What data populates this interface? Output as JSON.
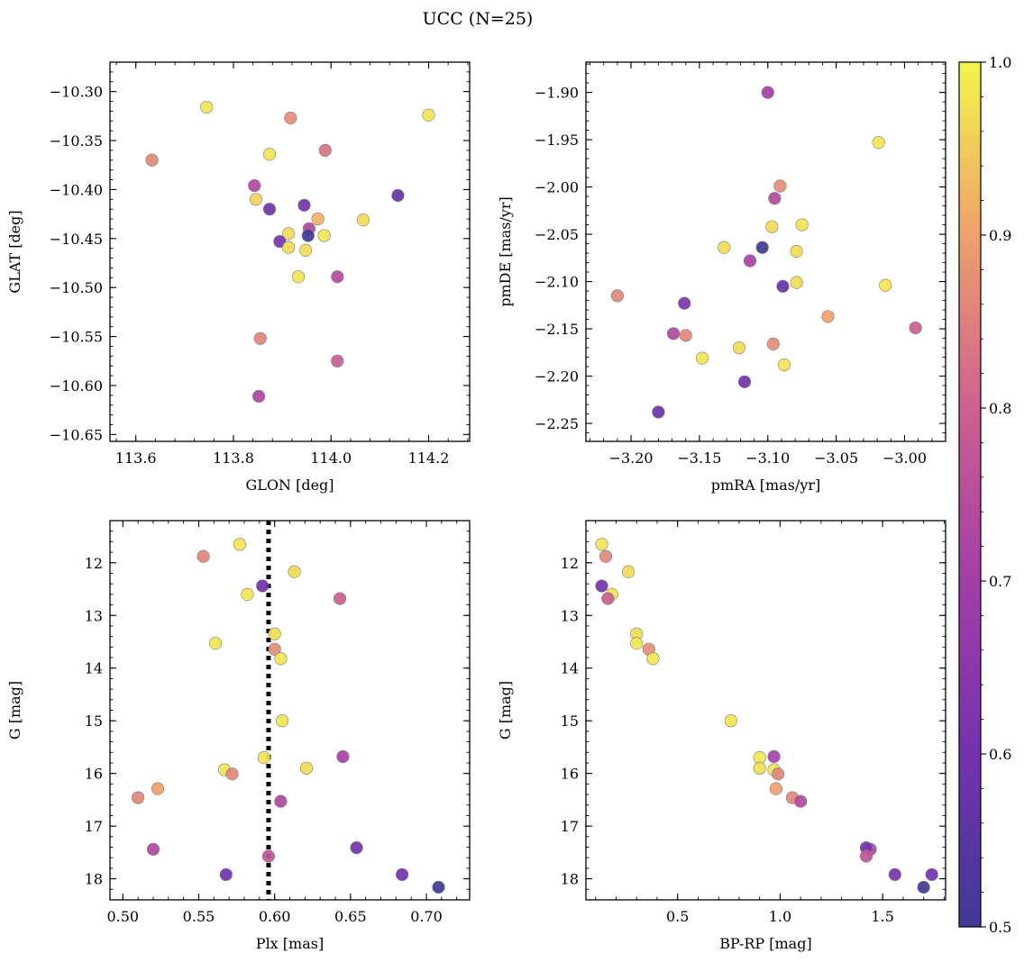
{
  "chart_data": {
    "type": "scatter",
    "title": "UCC (N=25)",
    "colorbar": {
      "colormap": "plasma",
      "range": [
        0.5,
        1.0
      ],
      "ticks": [
        0.5,
        0.6,
        0.7,
        0.8,
        0.9,
        1.0
      ],
      "tick_labels": [
        "0.5",
        "0.6",
        "0.7",
        "0.8",
        "0.9",
        "1.0"
      ]
    },
    "marker_edge_color": "#808080",
    "panels": [
      {
        "xlabel": "GLON [deg]",
        "ylabel": "GLAT [deg]",
        "xlim": [
          113.547,
          114.284
        ],
        "ylim": [
          -10.657,
          -10.27
        ],
        "y_inverted": false,
        "xticks": [
          113.6,
          113.8,
          114.0,
          114.2
        ],
        "xtick_labels": [
          "113.6",
          "113.8",
          "114.0",
          "114.2"
        ],
        "yticks": [
          -10.3,
          -10.35,
          -10.4,
          -10.45,
          -10.5,
          -10.55,
          -10.6,
          -10.65
        ],
        "ytick_labels": [
          "−10.30",
          "−10.35",
          "−10.40",
          "−10.45",
          "−10.50",
          "−10.55",
          "−10.60",
          "−10.65"
        ],
        "points": [
          {
            "x": 113.745,
            "y": -10.316,
            "c": 0.98
          },
          {
            "x": 113.917,
            "y": -10.327,
            "c": 0.87
          },
          {
            "x": 114.2,
            "y": -10.324,
            "c": 0.98
          },
          {
            "x": 113.633,
            "y": -10.37,
            "c": 0.86
          },
          {
            "x": 113.874,
            "y": -10.364,
            "c": 0.98
          },
          {
            "x": 113.988,
            "y": -10.36,
            "c": 0.83
          },
          {
            "x": 113.843,
            "y": -10.396,
            "c": 0.73
          },
          {
            "x": 113.846,
            "y": -10.41,
            "c": 0.96
          },
          {
            "x": 113.874,
            "y": -10.42,
            "c": 0.58
          },
          {
            "x": 113.945,
            "y": -10.416,
            "c": 0.6
          },
          {
            "x": 114.137,
            "y": -10.406,
            "c": 0.57
          },
          {
            "x": 113.973,
            "y": -10.43,
            "c": 0.92
          },
          {
            "x": 114.066,
            "y": -10.431,
            "c": 0.97
          },
          {
            "x": 113.955,
            "y": -10.44,
            "c": 0.73
          },
          {
            "x": 113.953,
            "y": -10.447,
            "c": 0.5
          },
          {
            "x": 113.913,
            "y": -10.445,
            "c": 0.97
          },
          {
            "x": 113.986,
            "y": -10.447,
            "c": 0.98
          },
          {
            "x": 113.895,
            "y": -10.453,
            "c": 0.6
          },
          {
            "x": 113.913,
            "y": -10.459,
            "c": 0.97
          },
          {
            "x": 113.948,
            "y": -10.462,
            "c": 0.97
          },
          {
            "x": 113.933,
            "y": -10.489,
            "c": 0.98
          },
          {
            "x": 114.013,
            "y": -10.489,
            "c": 0.74
          },
          {
            "x": 113.855,
            "y": -10.552,
            "c": 0.86
          },
          {
            "x": 114.013,
            "y": -10.575,
            "c": 0.79
          },
          {
            "x": 113.852,
            "y": -10.611,
            "c": 0.72
          }
        ]
      },
      {
        "xlabel": "pmRA [mas/yr]",
        "ylabel": "pmDE [mas/yr]",
        "xlim": [
          -3.233,
          -2.97
        ],
        "ylim": [
          -2.269,
          -1.868
        ],
        "y_inverted": false,
        "xticks": [
          -3.2,
          -3.15,
          -3.1,
          -3.05,
          -3.0
        ],
        "xtick_labels": [
          "−3.20",
          "−3.15",
          "−3.10",
          "−3.05",
          "−3.00"
        ],
        "yticks": [
          -1.9,
          -1.95,
          -2.0,
          -2.05,
          -2.1,
          -2.15,
          -2.2,
          -2.25
        ],
        "ytick_labels": [
          "−1.90",
          "−1.95",
          "−2.00",
          "−2.05",
          "−2.10",
          "−2.15",
          "−2.20",
          "−2.25"
        ],
        "points": [
          {
            "x": -3.1,
            "y": -1.9,
            "c": 0.7
          },
          {
            "x": -3.019,
            "y": -1.953,
            "c": 0.98
          },
          {
            "x": -3.091,
            "y": -1.999,
            "c": 0.87
          },
          {
            "x": -3.095,
            "y": -2.012,
            "c": 0.74
          },
          {
            "x": -3.097,
            "y": -2.042,
            "c": 0.97
          },
          {
            "x": -3.075,
            "y": -2.04,
            "c": 0.98
          },
          {
            "x": -3.132,
            "y": -2.064,
            "c": 0.97
          },
          {
            "x": -3.104,
            "y": -2.064,
            "c": 0.5
          },
          {
            "x": -3.079,
            "y": -2.068,
            "c": 0.97
          },
          {
            "x": -3.113,
            "y": -2.078,
            "c": 0.71
          },
          {
            "x": -3.079,
            "y": -2.101,
            "c": 0.97
          },
          {
            "x": -3.089,
            "y": -2.105,
            "c": 0.57
          },
          {
            "x": -3.014,
            "y": -2.104,
            "c": 0.98
          },
          {
            "x": -3.21,
            "y": -2.115,
            "c": 0.86
          },
          {
            "x": -3.161,
            "y": -2.123,
            "c": 0.62
          },
          {
            "x": -3.056,
            "y": -2.137,
            "c": 0.9
          },
          {
            "x": -2.992,
            "y": -2.149,
            "c": 0.8
          },
          {
            "x": -3.169,
            "y": -2.155,
            "c": 0.73
          },
          {
            "x": -3.16,
            "y": -2.157,
            "c": 0.86
          },
          {
            "x": -3.096,
            "y": -2.166,
            "c": 0.87
          },
          {
            "x": -3.121,
            "y": -2.17,
            "c": 0.97
          },
          {
            "x": -3.148,
            "y": -2.181,
            "c": 0.98
          },
          {
            "x": -3.088,
            "y": -2.188,
            "c": 0.98
          },
          {
            "x": -3.117,
            "y": -2.206,
            "c": 0.6
          },
          {
            "x": -3.18,
            "y": -2.238,
            "c": 0.58
          }
        ]
      },
      {
        "xlabel": "Plx [mas]",
        "ylabel": "G [mag]",
        "xlim": [
          0.4915,
          0.7285
        ],
        "ylim": [
          11.2,
          18.4
        ],
        "y_inverted": true,
        "xticks": [
          0.5,
          0.55,
          0.6,
          0.65,
          0.7
        ],
        "xtick_labels": [
          "0.50",
          "0.55",
          "0.60",
          "0.65",
          "0.70"
        ],
        "yticks": [
          12,
          13,
          14,
          15,
          16,
          17,
          18
        ],
        "ytick_labels": [
          "12",
          "13",
          "14",
          "15",
          "16",
          "17",
          "18"
        ],
        "vline": {
          "x": 0.596,
          "style": "dotted"
        },
        "points": [
          {
            "x": 0.577,
            "y": 11.65,
            "c": 0.98
          },
          {
            "x": 0.553,
            "y": 11.88,
            "c": 0.86
          },
          {
            "x": 0.613,
            "y": 12.17,
            "c": 0.97
          },
          {
            "x": 0.592,
            "y": 12.44,
            "c": 0.6
          },
          {
            "x": 0.582,
            "y": 12.6,
            "c": 0.98
          },
          {
            "x": 0.643,
            "y": 12.68,
            "c": 0.79
          },
          {
            "x": 0.6,
            "y": 13.35,
            "c": 0.97
          },
          {
            "x": 0.561,
            "y": 13.53,
            "c": 0.98
          },
          {
            "x": 0.6,
            "y": 13.64,
            "c": 0.87
          },
          {
            "x": 0.604,
            "y": 13.82,
            "c": 0.98
          },
          {
            "x": 0.605,
            "y": 15.0,
            "c": 0.98
          },
          {
            "x": 0.645,
            "y": 15.68,
            "c": 0.71
          },
          {
            "x": 0.593,
            "y": 15.7,
            "c": 0.98
          },
          {
            "x": 0.621,
            "y": 15.9,
            "c": 0.97
          },
          {
            "x": 0.567,
            "y": 15.93,
            "c": 0.98
          },
          {
            "x": 0.572,
            "y": 16.01,
            "c": 0.86
          },
          {
            "x": 0.523,
            "y": 16.29,
            "c": 0.9
          },
          {
            "x": 0.51,
            "y": 16.46,
            "c": 0.86
          },
          {
            "x": 0.604,
            "y": 16.53,
            "c": 0.73
          },
          {
            "x": 0.52,
            "y": 17.44,
            "c": 0.73
          },
          {
            "x": 0.654,
            "y": 17.41,
            "c": 0.6
          },
          {
            "x": 0.596,
            "y": 17.57,
            "c": 0.77
          },
          {
            "x": 0.568,
            "y": 17.92,
            "c": 0.6
          },
          {
            "x": 0.684,
            "y": 17.92,
            "c": 0.6
          },
          {
            "x": 0.708,
            "y": 18.16,
            "c": 0.5
          }
        ]
      },
      {
        "xlabel": "BP-RP [mag]",
        "ylabel": "G [mag]",
        "xlim": [
          0.053,
          1.807
        ],
        "ylim": [
          11.2,
          18.4
        ],
        "y_inverted": true,
        "xticks": [
          0.5,
          1.0,
          1.5
        ],
        "xtick_labels": [
          "0.5",
          "1.0",
          "1.5"
        ],
        "yticks": [
          12,
          13,
          14,
          15,
          16,
          17,
          18
        ],
        "ytick_labels": [
          "12",
          "13",
          "14",
          "15",
          "16",
          "17",
          "18"
        ],
        "points": [
          {
            "x": 0.13,
            "y": 11.65,
            "c": 0.98
          },
          {
            "x": 0.15,
            "y": 11.88,
            "c": 0.86
          },
          {
            "x": 0.26,
            "y": 12.17,
            "c": 0.97
          },
          {
            "x": 0.13,
            "y": 12.44,
            "c": 0.6
          },
          {
            "x": 0.18,
            "y": 12.6,
            "c": 0.98
          },
          {
            "x": 0.16,
            "y": 12.68,
            "c": 0.79
          },
          {
            "x": 0.3,
            "y": 13.35,
            "c": 0.97
          },
          {
            "x": 0.3,
            "y": 13.53,
            "c": 0.98
          },
          {
            "x": 0.36,
            "y": 13.64,
            "c": 0.87
          },
          {
            "x": 0.38,
            "y": 13.82,
            "c": 0.98
          },
          {
            "x": 0.76,
            "y": 15.0,
            "c": 0.98
          },
          {
            "x": 0.97,
            "y": 15.68,
            "c": 0.71
          },
          {
            "x": 0.9,
            "y": 15.7,
            "c": 0.98
          },
          {
            "x": 0.9,
            "y": 15.9,
            "c": 0.97
          },
          {
            "x": 0.97,
            "y": 15.93,
            "c": 0.98
          },
          {
            "x": 0.99,
            "y": 16.01,
            "c": 0.86
          },
          {
            "x": 0.98,
            "y": 16.29,
            "c": 0.9
          },
          {
            "x": 1.06,
            "y": 16.46,
            "c": 0.86
          },
          {
            "x": 1.1,
            "y": 16.53,
            "c": 0.73
          },
          {
            "x": 1.44,
            "y": 17.44,
            "c": 0.73
          },
          {
            "x": 1.42,
            "y": 17.41,
            "c": 0.6
          },
          {
            "x": 1.42,
            "y": 17.57,
            "c": 0.77
          },
          {
            "x": 1.56,
            "y": 17.92,
            "c": 0.6
          },
          {
            "x": 1.74,
            "y": 17.92,
            "c": 0.6
          },
          {
            "x": 1.7,
            "y": 18.16,
            "c": 0.5
          }
        ]
      }
    ]
  }
}
